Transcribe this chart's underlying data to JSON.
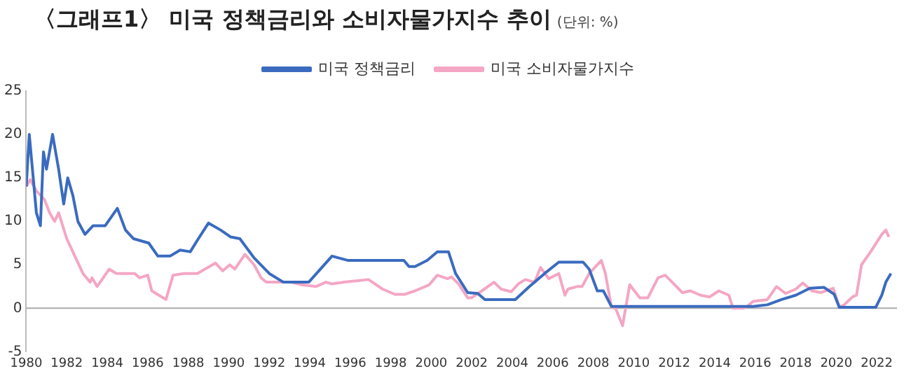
{
  "chart_data": {
    "type": "line",
    "title": "〈그래프1〉 미국 정책금리와 소비자물가지수 추이",
    "subtitle": "(단위: %)",
    "xlim": [
      1980,
      2023
    ],
    "xticks": [
      1980,
      1982,
      1984,
      1986,
      1988,
      1990,
      1992,
      1994,
      1996,
      1998,
      2000,
      2002,
      2004,
      2006,
      2008,
      2010,
      2012,
      2014,
      2016,
      2018,
      2020,
      2022
    ],
    "ylim": [
      -5,
      25
    ],
    "yticks": [
      -5,
      0,
      5,
      10,
      15,
      20,
      25
    ],
    "grid": false,
    "legend": "top",
    "marker": "none",
    "line_style": "solid",
    "ref_lines": [
      {
        "axis": "y",
        "value": 0,
        "color": "#aaaaaa"
      }
    ],
    "series": [
      {
        "name": "미국 정책금리",
        "color": "#3a6bbf",
        "x": [
          1980.0,
          1980.15,
          1980.5,
          1980.7,
          1980.85,
          1981.0,
          1981.3,
          1981.6,
          1981.85,
          1982.05,
          1982.3,
          1982.55,
          1982.9,
          1983.3,
          1983.9,
          1984.5,
          1984.9,
          1985.3,
          1986.05,
          1986.5,
          1987.1,
          1987.6,
          1988.1,
          1988.5,
          1989.0,
          1989.6,
          1990.1,
          1990.55,
          1991.25,
          1992.0,
          1992.7,
          1993.95,
          1995.1,
          1995.9,
          1997.0,
          1998.65,
          1998.9,
          1999.2,
          1999.8,
          2000.3,
          2000.85,
          2001.2,
          2001.8,
          2002.3,
          2002.65,
          2004.15,
          2004.85,
          2005.6,
          2006.3,
          2007.5,
          2007.8,
          2008.2,
          2008.5,
          2008.9,
          2015.9,
          2016.6,
          2017.3,
          2018.0,
          2018.7,
          2019.4,
          2019.9,
          2020.15,
          2021.95,
          2022.25,
          2022.45,
          2022.7
        ],
        "values": [
          14,
          20,
          11,
          9.5,
          18,
          16,
          20,
          16,
          12,
          15,
          13,
          10,
          8.5,
          9.5,
          9.5,
          11.5,
          9,
          8,
          7.5,
          6,
          6,
          6.7,
          6.5,
          8,
          9.8,
          9,
          8.2,
          8,
          5.8,
          4,
          3,
          3,
          6,
          5.5,
          5.5,
          5.5,
          4.8,
          4.8,
          5.5,
          6.5,
          6.5,
          4,
          1.8,
          1.7,
          1,
          1,
          2.5,
          4,
          5.3,
          5.3,
          4.5,
          2,
          2,
          0.2,
          0.2,
          0.4,
          1,
          1.5,
          2.3,
          2.4,
          1.6,
          0.1,
          0.1,
          1.5,
          3,
          4
        ]
      },
      {
        "name": "미국 소비자물가지수",
        "color": "#f4a6c4",
        "x": [
          1980.0,
          1980.2,
          1980.5,
          1980.9,
          1981.15,
          1981.4,
          1981.6,
          1982.0,
          1982.3,
          1982.8,
          1983.15,
          1983.25,
          1983.5,
          1984.1,
          1984.45,
          1985.35,
          1985.6,
          1986.0,
          1986.2,
          1986.55,
          1986.9,
          1987.25,
          1987.8,
          1988.45,
          1989.35,
          1989.7,
          1990.05,
          1990.3,
          1990.8,
          1991.25,
          1991.6,
          1991.85,
          1993.1,
          1993.6,
          1994.3,
          1994.8,
          1995.1,
          1995.7,
          1996.9,
          1997.6,
          1998.2,
          1998.7,
          1999.2,
          1999.9,
          2000.3,
          2000.8,
          2001.0,
          2001.35,
          2001.8,
          2002.0,
          2002.5,
          2003.1,
          2003.45,
          2003.95,
          2004.3,
          2004.65,
          2005.1,
          2005.4,
          2005.8,
          2006.3,
          2006.6,
          2006.75,
          2007.2,
          2007.45,
          2007.8,
          2008.4,
          2008.6,
          2008.9,
          2009.1,
          2009.45,
          2009.8,
          2010.3,
          2010.7,
          2011.2,
          2011.55,
          2011.9,
          2012.4,
          2012.8,
          2013.3,
          2013.75,
          2014.2,
          2014.7,
          2014.9,
          2015.4,
          2015.6,
          2015.9,
          2016.6,
          2017.05,
          2017.5,
          2018.0,
          2018.35,
          2018.8,
          2019.25,
          2019.85,
          2020.15,
          2020.35,
          2020.8,
          2021.0,
          2021.25,
          2021.7,
          2022.25,
          2022.45,
          2022.6
        ],
        "values": [
          14,
          14.8,
          13.5,
          12.5,
          11,
          10,
          11,
          8,
          6.5,
          4,
          3,
          3.5,
          2.5,
          4.5,
          4,
          4,
          3.5,
          3.8,
          2,
          1.5,
          1,
          3.8,
          4,
          4,
          5.2,
          4.3,
          5,
          4.5,
          6.2,
          5,
          3.5,
          3,
          3,
          2.7,
          2.5,
          3,
          2.8,
          3,
          3.3,
          2.2,
          1.6,
          1.6,
          2,
          2.7,
          3.8,
          3.4,
          3.6,
          2.8,
          1.2,
          1.2,
          2,
          3,
          2.2,
          1.9,
          2.8,
          3.3,
          3,
          4.7,
          3.4,
          4,
          1.5,
          2.2,
          2.5,
          2.5,
          4,
          5.5,
          4,
          0.1,
          0,
          -2,
          2.7,
          1.2,
          1.2,
          3.5,
          3.8,
          3,
          1.8,
          2,
          1.5,
          1.3,
          2,
          1.5,
          0,
          0,
          0.2,
          0.8,
          1,
          2.5,
          1.7,
          2.2,
          2.9,
          2,
          1.8,
          2.3,
          0.2,
          0.3,
          1.3,
          1.5,
          5,
          6.5,
          8.5,
          9,
          8.2
        ]
      }
    ]
  }
}
